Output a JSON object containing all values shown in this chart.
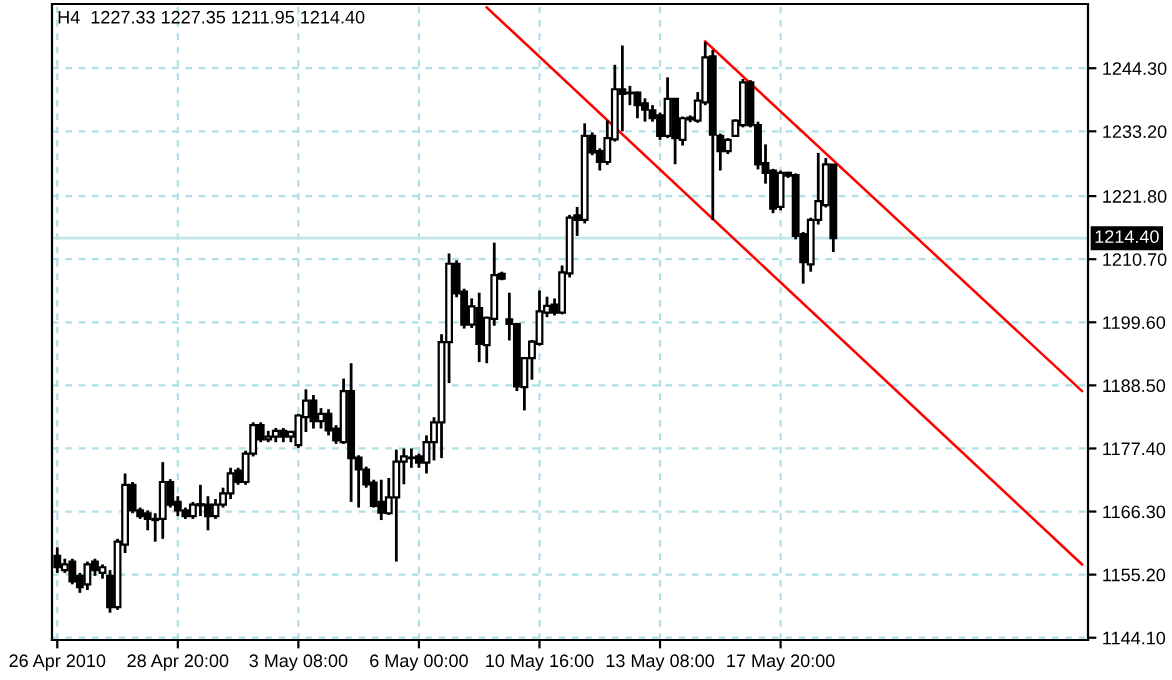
{
  "chart_data": {
    "type": "candlestick",
    "title": "H4  1227.33 1227.35 1211.95 1214.40",
    "categories": [
      "26 Apr 2010",
      null,
      null,
      null,
      null,
      null,
      null,
      null,
      null,
      null,
      null,
      null,
      null,
      null,
      null,
      null,
      "28 Apr 20:00",
      null,
      null,
      null,
      null,
      null,
      null,
      null,
      null,
      null,
      null,
      null,
      null,
      null,
      null,
      null,
      "3 May 08:00",
      null,
      null,
      null,
      null,
      null,
      null,
      null,
      null,
      null,
      null,
      null,
      null,
      null,
      null,
      null,
      "6 May 00:00",
      null,
      null,
      null,
      null,
      null,
      null,
      null,
      null,
      null,
      null,
      null,
      null,
      null,
      null,
      null,
      "10 May 16:00",
      null,
      null,
      null,
      null,
      null,
      null,
      null,
      null,
      null,
      null,
      null,
      null,
      null,
      null,
      null,
      "13 May 08:00",
      null,
      null,
      null,
      null,
      null,
      null,
      null,
      null,
      null,
      null,
      null,
      null,
      null,
      null,
      null,
      "17 May 20:00",
      null,
      null,
      null,
      null,
      null,
      null,
      null,
      null,
      null,
      null,
      null,
      null,
      null,
      null,
      null,
      null,
      null,
      null,
      null,
      null,
      null,
      null,
      null,
      null,
      null,
      null,
      null,
      null,
      null,
      null,
      null,
      null,
      null,
      null,
      null,
      null,
      null,
      null,
      null,
      null
    ],
    "ohlc": [
      [
        1158.5,
        1160,
        1155.5,
        1156.5
      ],
      [
        1156,
        1158,
        1155.5,
        1157
      ],
      [
        1157.5,
        1158,
        1153.5,
        1154
      ],
      [
        1155,
        1155.5,
        1152,
        1153
      ],
      [
        1153.5,
        1157.5,
        1152.5,
        1157
      ],
      [
        1157.5,
        1158,
        1155,
        1156
      ],
      [
        1155.5,
        1157,
        1154.5,
        1156.5
      ],
      [
        1155,
        1156,
        1148.5,
        1149.5
      ],
      [
        1149.5,
        1161.5,
        1149,
        1161
      ],
      [
        1160.5,
        1173,
        1159,
        1171
      ],
      [
        1171,
        1171.5,
        1166,
        1166.5
      ],
      [
        1166.5,
        1167,
        1165,
        1165.5
      ],
      [
        1166,
        1166.5,
        1163,
        1165
      ],
      [
        1165,
        1166,
        1161,
        1164.8
      ],
      [
        1165,
        1175,
        1161.5,
        1171.5
      ],
      [
        1171.5,
        1172,
        1167,
        1167.5
      ],
      [
        1168,
        1169,
        1165.5,
        1166.5
      ],
      [
        1166.5,
        1167,
        1165,
        1165.5
      ],
      [
        1165.5,
        1168,
        1165,
        1167.5
      ],
      [
        1167.4,
        1171,
        1165.5,
        1167.6
      ],
      [
        1167.5,
        1169,
        1163,
        1165.5
      ],
      [
        1165.5,
        1168.5,
        1165,
        1167.5
      ],
      [
        1167.5,
        1170.5,
        1167,
        1169.5
      ],
      [
        1169.5,
        1174,
        1168.5,
        1173
      ],
      [
        1173.5,
        1174,
        1171,
        1171.5
      ],
      [
        1171.5,
        1177,
        1171,
        1176.5
      ],
      [
        1176.5,
        1182,
        1176,
        1181.5
      ],
      [
        1181.5,
        1182,
        1178.5,
        1179
      ],
      [
        1179,
        1180.5,
        1178.5,
        1179.5
      ],
      [
        1179.5,
        1181,
        1178.5,
        1180.5
      ],
      [
        1180.5,
        1181,
        1178.5,
        1179.5
      ],
      [
        1179.5,
        1180.5,
        1178.5,
        1180.3
      ],
      [
        1178,
        1183.5,
        1177.5,
        1183.2
      ],
      [
        1182.9,
        1187.8,
        1180.3,
        1185.8
      ],
      [
        1185.8,
        1186.8,
        1180.9,
        1182.2
      ],
      [
        1182.2,
        1184.5,
        1180.9,
        1183.5
      ],
      [
        1183.5,
        1184.3,
        1179.7,
        1180.6
      ],
      [
        1180.9,
        1181.5,
        1178.2,
        1178.8
      ],
      [
        1178.5,
        1189.7,
        1178.2,
        1187.5
      ],
      [
        1187.5,
        1192.4,
        1168,
        1175.7
      ],
      [
        1175.8,
        1176.2,
        1167,
        1173.7
      ],
      [
        1173.7,
        1174.2,
        1170.5,
        1171.1
      ],
      [
        1171.4,
        1171.9,
        1167,
        1167.3
      ],
      [
        1168,
        1171.9,
        1164.8,
        1166.1
      ],
      [
        1166,
        1172.2,
        1165.7,
        1168.8
      ],
      [
        1168.8,
        1177.2,
        1157.5,
        1175.1
      ],
      [
        1175.1,
        1177.4,
        1171.1,
        1176.0
      ],
      [
        1175.7,
        1177.4,
        1174,
        1175.8
      ],
      [
        1176.0,
        1176.5,
        1174,
        1174.9
      ],
      [
        1174.9,
        1179.7,
        1173,
        1178.5
      ],
      [
        1178.5,
        1182.9,
        1175.3,
        1182.0
      ],
      [
        1182.0,
        1197.5,
        1175.7,
        1196.1
      ],
      [
        1196.1,
        1211.7,
        1188.9,
        1209.9
      ],
      [
        1209.9,
        1210.5,
        1204,
        1204.7
      ],
      [
        1205,
        1205.5,
        1198.5,
        1199.2
      ],
      [
        1199.2,
        1203.8,
        1198.6,
        1202.4
      ],
      [
        1202.1,
        1204.8,
        1192.6,
        1195.8
      ],
      [
        1195.6,
        1200.6,
        1192.4,
        1200.4
      ],
      [
        1200.2,
        1213.6,
        1199,
        1207.9
      ],
      [
        1208.1,
        1208.5,
        1207,
        1207.3
      ],
      [
        1200.1,
        1204.8,
        1196.4,
        1199.3
      ],
      [
        1199.3,
        1199.5,
        1187.5,
        1188.3
      ],
      [
        1188.2,
        1193.5,
        1184.1,
        1193.3
      ],
      [
        1193.3,
        1196.5,
        1189.5,
        1196.2
      ],
      [
        1195.8,
        1205.2,
        1195.5,
        1201.5
      ],
      [
        1201.3,
        1204.1,
        1200.5,
        1202.5
      ],
      [
        1202.7,
        1203.8,
        1200.8,
        1201.3
      ],
      [
        1201.3,
        1209.6,
        1201,
        1208.4
      ],
      [
        1208.2,
        1218.5,
        1207.5,
        1218
      ],
      [
        1218.4,
        1219.9,
        1214.8,
        1217.6
      ],
      [
        1217.6,
        1234.6,
        1217,
        1232.4
      ],
      [
        1232.4,
        1233,
        1229,
        1229.5
      ],
      [
        1229.7,
        1230.2,
        1226.3,
        1227.8
      ],
      [
        1227.8,
        1235.1,
        1227.3,
        1232
      ],
      [
        1231.8,
        1244.9,
        1231.4,
        1240.6
      ],
      [
        1240.6,
        1248.3,
        1233.2,
        1239.8
      ],
      [
        1239.9,
        1241.2,
        1237.8,
        1240.0
      ],
      [
        1240,
        1240.2,
        1235.5,
        1237.8
      ],
      [
        1238.1,
        1239,
        1234.9,
        1237
      ],
      [
        1236.9,
        1237.8,
        1234.9,
        1235.5
      ],
      [
        1236,
        1236.5,
        1231.7,
        1232.4
      ],
      [
        1232.4,
        1242.7,
        1232,
        1238.9
      ],
      [
        1238.9,
        1239,
        1227.4,
        1232
      ],
      [
        1231.7,
        1235.8,
        1230.7,
        1235.5
      ],
      [
        1235.3,
        1236,
        1234.8,
        1235.6
      ],
      [
        1235.1,
        1240.1,
        1234.7,
        1238.6
      ],
      [
        1238.3,
        1248.9,
        1237.8,
        1246.2
      ],
      [
        1246.4,
        1247.5,
        1217.6,
        1232.6
      ],
      [
        1232.4,
        1232.8,
        1226.3,
        1229.7
      ],
      [
        1229.7,
        1232,
        1229.2,
        1231.7
      ],
      [
        1232.4,
        1235.3,
        1232.2,
        1235.1
      ],
      [
        1234.3,
        1242.4,
        1233.9,
        1241.8
      ],
      [
        1241.8,
        1242.2,
        1233.9,
        1234.3
      ],
      [
        1234.3,
        1234.9,
        1226.5,
        1227.4
      ],
      [
        1227.6,
        1230.9,
        1224,
        1225.9
      ],
      [
        1226.3,
        1226.6,
        1218.8,
        1219.6
      ],
      [
        1219.9,
        1226.3,
        1219.3,
        1225.9
      ],
      [
        1225.9,
        1226.1,
        1225,
        1225.4
      ],
      [
        1225.5,
        1225.8,
        1214.2,
        1214.8
      ],
      [
        1215.1,
        1215.5,
        1206.4,
        1210.2
      ],
      [
        1209.8,
        1218,
        1208.5,
        1217.6
      ],
      [
        1217.6,
        1229.4,
        1216.8,
        1220.9
      ],
      [
        1220.2,
        1228.5,
        1219.8,
        1227.4
      ],
      [
        1227.33,
        1227.35,
        1211.95,
        1214.4
      ],
      null,
      null,
      null,
      null,
      null,
      null,
      null,
      null,
      null,
      null,
      null,
      null,
      null,
      null,
      null,
      null,
      null,
      null,
      null,
      null,
      null,
      null,
      null,
      null,
      null,
      null,
      null,
      null,
      null,
      null,
      null,
      null,
      null
    ],
    "series": [
      {
        "type": "line",
        "color": "#ff0000",
        "values": [
          null,
          null,
          null,
          null,
          null,
          null,
          null,
          null,
          null,
          null,
          null,
          null,
          null,
          null,
          null,
          null,
          null,
          null,
          null,
          null,
          null,
          null,
          null,
          null,
          null,
          null,
          null,
          null,
          null,
          null,
          null,
          null,
          null,
          null,
          null,
          null,
          null,
          null,
          null,
          null,
          null,
          null,
          null,
          null,
          null,
          null,
          null,
          null,
          null,
          null,
          null,
          null,
          null,
          null,
          null,
          null,
          null,
          null,
          null,
          null,
          null,
          null,
          null,
          null,
          null,
          null,
          null,
          null,
          null,
          null,
          null,
          null,
          null,
          null,
          null,
          null,
          null,
          null,
          null,
          null,
          null,
          null,
          null,
          null,
          null,
          null,
          1249.0,
          null,
          null,
          null,
          null,
          null,
          null,
          null,
          null,
          null,
          null,
          null,
          null,
          null,
          null,
          null,
          null,
          null,
          null,
          null,
          null,
          null,
          null,
          null,
          null,
          null,
          null,
          null,
          null,
          null,
          null,
          null,
          null,
          null,
          null,
          null,
          null,
          null,
          null,
          null,
          null,
          null,
          null,
          null,
          null,
          null,
          null,
          null,
          null,
          null,
          1187.5
        ]
      },
      {
        "type": "line",
        "color": "#ff0000",
        "values": [
          null,
          null,
          null,
          null,
          null,
          null,
          null,
          null,
          null,
          null,
          null,
          null,
          null,
          null,
          null,
          null,
          null,
          null,
          null,
          null,
          null,
          null,
          null,
          null,
          null,
          null,
          null,
          null,
          null,
          null,
          null,
          null,
          null,
          null,
          null,
          null,
          null,
          null,
          null,
          null,
          null,
          null,
          null,
          null,
          null,
          null,
          null,
          null,
          null,
          null,
          null,
          null,
          null,
          null,
          null,
          null,
          null,
          1255.0,
          null,
          null,
          null,
          null,
          null,
          null,
          null,
          null,
          null,
          null,
          null,
          null,
          null,
          null,
          null,
          null,
          null,
          null,
          null,
          null,
          null,
          null,
          null,
          null,
          null,
          null,
          null,
          null,
          null,
          null,
          null,
          null,
          null,
          null,
          null,
          null,
          null,
          null,
          null,
          null,
          null,
          null,
          null,
          null,
          null,
          null,
          null,
          null,
          null,
          null,
          null,
          null,
          null,
          null,
          null,
          null,
          null,
          null,
          null,
          null,
          null,
          null,
          null,
          null,
          null,
          null,
          null,
          null,
          null,
          null,
          null,
          null,
          null,
          null,
          null,
          null,
          null,
          null,
          1157.0
        ]
      }
    ],
    "ylim": [
      1143.7,
      1255.6
    ],
    "yticks": [
      {
        "value": 1144.1,
        "label": "1144.10"
      },
      {
        "value": 1155.2,
        "label": "1155.20"
      },
      {
        "value": 1166.3,
        "label": "1166.30"
      },
      {
        "value": 1177.4,
        "label": "1177.40"
      },
      {
        "value": 1188.5,
        "label": "1188.50"
      },
      {
        "value": 1199.6,
        "label": "1199.60"
      },
      {
        "value": 1210.7,
        "label": "1210.70"
      },
      {
        "value": 1221.8,
        "label": "1221.80"
      },
      {
        "value": 1233.2,
        "label": "1233.20"
      },
      {
        "value": 1244.3,
        "label": "1244.30"
      }
    ],
    "ref_lines": [
      {
        "axis": "y",
        "value": 1214.4,
        "label": "1214.40",
        "color": "#c0e8e8"
      }
    ],
    "grid": true
  }
}
